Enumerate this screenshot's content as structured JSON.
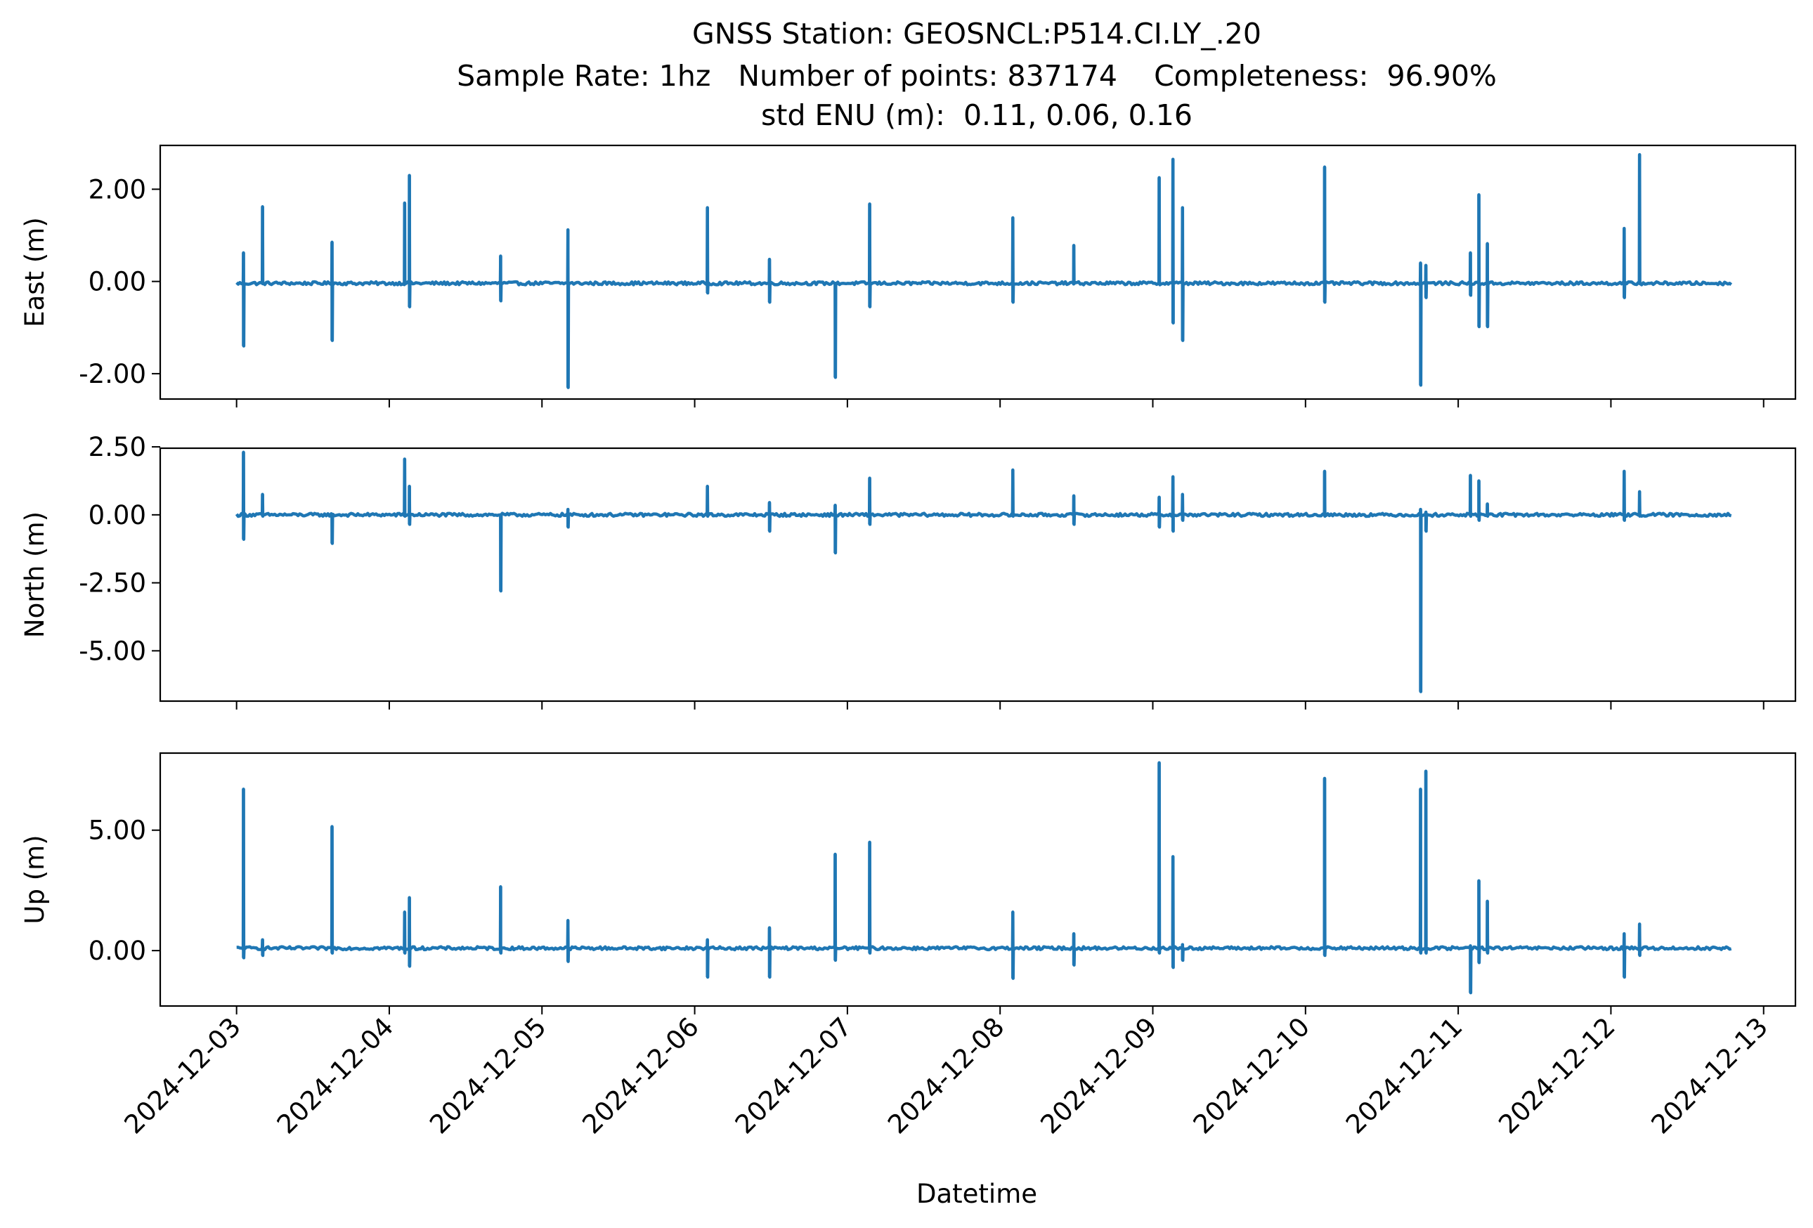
{
  "figure": {
    "title_lines": [
      "GNSS Station: GEOSNCL:P514.CI.LY_.20",
      "Sample Rate: 1hz   Number of points: 837174    Completeness:  96.90%",
      "std ENU (m):  0.11, 0.06, 0.16"
    ],
    "xlabel": "Datetime",
    "line_color": "#1f77b4"
  },
  "chart_data": [
    {
      "type": "line",
      "ylabel": "East (m)",
      "ylim": [
        -2.55,
        2.95
      ],
      "yticks": [
        -2.0,
        0.0,
        2.0
      ],
      "ytick_labels": [
        "-2.00",
        "0.00",
        "2.00"
      ],
      "xlim": [
        "2024-12-02 12:00",
        "2024-12-13 05:00"
      ],
      "x_tick_labels": [
        "2024-12-03",
        "2024-12-04",
        "2024-12-05",
        "2024-12-06",
        "2024-12-07",
        "2024-12-08",
        "2024-12-09",
        "2024-12-10",
        "2024-12-11",
        "2024-12-12",
        "2024-12-13"
      ],
      "series": [
        {
          "start": "2024-12-03 00:00",
          "end": "2024-12-12 18:55",
          "baseline": -0.04,
          "spikes": [
            {
              "t": "2024-12-03 01:05",
              "min": -1.4,
              "max": 0.62
            },
            {
              "t": "2024-12-03 04:05",
              "min": -0.05,
              "max": 1.62
            },
            {
              "t": "2024-12-03 15:00",
              "min": -1.28,
              "max": 0.85
            },
            {
              "t": "2024-12-04 02:25",
              "min": -0.05,
              "max": 1.7
            },
            {
              "t": "2024-12-04 03:10",
              "min": -0.55,
              "max": 2.3
            },
            {
              "t": "2024-12-04 17:30",
              "min": -0.42,
              "max": 0.55
            },
            {
              "t": "2024-12-05 04:05",
              "min": -2.3,
              "max": 1.12
            },
            {
              "t": "2024-12-06 02:00",
              "min": -0.25,
              "max": 1.6
            },
            {
              "t": "2024-12-06 11:45",
              "min": -0.45,
              "max": 0.48
            },
            {
              "t": "2024-12-06 22:05",
              "min": -2.08,
              "max": -0.05
            },
            {
              "t": "2024-12-07 03:30",
              "min": -0.55,
              "max": 1.68
            },
            {
              "t": "2024-12-08 02:00",
              "min": -0.45,
              "max": 1.38
            },
            {
              "t": "2024-12-08 11:35",
              "min": -0.05,
              "max": 0.78
            },
            {
              "t": "2024-12-09 01:00",
              "min": -0.05,
              "max": 2.25
            },
            {
              "t": "2024-12-09 03:10",
              "min": -0.9,
              "max": 2.65
            },
            {
              "t": "2024-12-09 04:40",
              "min": -1.28,
              "max": 1.6
            },
            {
              "t": "2024-12-10 03:00",
              "min": -0.45,
              "max": 2.48
            },
            {
              "t": "2024-12-10 18:05",
              "min": -2.25,
              "max": 0.4
            },
            {
              "t": "2024-12-10 18:55",
              "min": -0.35,
              "max": 0.35
            },
            {
              "t": "2024-12-11 01:55",
              "min": -0.3,
              "max": 0.62
            },
            {
              "t": "2024-12-11 03:15",
              "min": -0.98,
              "max": 1.88
            },
            {
              "t": "2024-12-11 04:35",
              "min": -0.98,
              "max": 0.82
            },
            {
              "t": "2024-12-12 02:05",
              "min": -0.35,
              "max": 1.15
            },
            {
              "t": "2024-12-12 04:30",
              "min": -0.05,
              "max": 2.75
            }
          ]
        }
      ]
    },
    {
      "type": "line",
      "ylabel": "North (m)",
      "ylim": [
        -6.85,
        2.45
      ],
      "yticks": [
        -5.0,
        -2.5,
        0.0,
        2.5
      ],
      "ytick_labels": [
        "-5.00",
        "-2.50",
        "0.00",
        "2.50"
      ],
      "xlim": [
        "2024-12-02 12:00",
        "2024-12-13 05:00"
      ],
      "x_tick_labels": [
        "2024-12-03",
        "2024-12-04",
        "2024-12-05",
        "2024-12-06",
        "2024-12-07",
        "2024-12-08",
        "2024-12-09",
        "2024-12-10",
        "2024-12-11",
        "2024-12-12",
        "2024-12-13"
      ],
      "series": [
        {
          "start": "2024-12-03 00:00",
          "end": "2024-12-12 18:55",
          "baseline": 0.0,
          "spikes": [
            {
              "t": "2024-12-03 01:05",
              "min": -0.9,
              "max": 2.3
            },
            {
              "t": "2024-12-03 04:05",
              "min": -0.05,
              "max": 0.75
            },
            {
              "t": "2024-12-03 15:00",
              "min": -1.05,
              "max": -0.05
            },
            {
              "t": "2024-12-04 02:25",
              "min": -0.05,
              "max": 2.05
            },
            {
              "t": "2024-12-04 03:10",
              "min": -0.35,
              "max": 1.05
            },
            {
              "t": "2024-12-04 17:30",
              "min": -2.8,
              "max": -0.05
            },
            {
              "t": "2024-12-05 04:05",
              "min": -0.45,
              "max": 0.2
            },
            {
              "t": "2024-12-06 02:00",
              "min": -0.05,
              "max": 1.05
            },
            {
              "t": "2024-12-06 11:45",
              "min": -0.6,
              "max": 0.45
            },
            {
              "t": "2024-12-06 22:05",
              "min": -1.4,
              "max": 0.35
            },
            {
              "t": "2024-12-07 03:30",
              "min": -0.35,
              "max": 1.35
            },
            {
              "t": "2024-12-08 02:00",
              "min": -0.05,
              "max": 1.65
            },
            {
              "t": "2024-12-08 11:35",
              "min": -0.35,
              "max": 0.7
            },
            {
              "t": "2024-12-09 01:00",
              "min": -0.45,
              "max": 0.65
            },
            {
              "t": "2024-12-09 03:10",
              "min": -0.6,
              "max": 1.4
            },
            {
              "t": "2024-12-09 04:40",
              "min": -0.2,
              "max": 0.75
            },
            {
              "t": "2024-12-10 03:00",
              "min": -0.05,
              "max": 1.6
            },
            {
              "t": "2024-12-10 18:05",
              "min": -6.5,
              "max": 0.2
            },
            {
              "t": "2024-12-10 18:55",
              "min": -0.6,
              "max": 0.1
            },
            {
              "t": "2024-12-11 01:55",
              "min": -0.05,
              "max": 1.45
            },
            {
              "t": "2024-12-11 03:15",
              "min": -0.2,
              "max": 1.25
            },
            {
              "t": "2024-12-11 04:35",
              "min": -0.05,
              "max": 0.4
            },
            {
              "t": "2024-12-12 02:05",
              "min": -0.2,
              "max": 1.6
            },
            {
              "t": "2024-12-12 04:30",
              "min": -0.05,
              "max": 0.85
            }
          ]
        }
      ]
    },
    {
      "type": "line",
      "ylabel": "Up (m)",
      "ylim": [
        -2.3,
        8.2
      ],
      "yticks": [
        0.0,
        5.0
      ],
      "ytick_labels": [
        "0.00",
        "5.00"
      ],
      "xlim": [
        "2024-12-02 12:00",
        "2024-12-13 05:00"
      ],
      "x_tick_labels": [
        "2024-12-03",
        "2024-12-04",
        "2024-12-05",
        "2024-12-06",
        "2024-12-07",
        "2024-12-08",
        "2024-12-09",
        "2024-12-10",
        "2024-12-11",
        "2024-12-12",
        "2024-12-13"
      ],
      "series": [
        {
          "start": "2024-12-03 00:00",
          "end": "2024-12-12 18:55",
          "baseline": 0.1,
          "spikes": [
            {
              "t": "2024-12-03 01:05",
              "min": -0.3,
              "max": 6.7
            },
            {
              "t": "2024-12-03 04:05",
              "min": -0.2,
              "max": 0.45
            },
            {
              "t": "2024-12-03 15:00",
              "min": -0.1,
              "max": 5.15
            },
            {
              "t": "2024-12-04 02:25",
              "min": -0.1,
              "max": 1.6
            },
            {
              "t": "2024-12-04 03:10",
              "min": -0.65,
              "max": 2.2
            },
            {
              "t": "2024-12-04 17:30",
              "min": -0.1,
              "max": 2.65
            },
            {
              "t": "2024-12-05 04:05",
              "min": -0.45,
              "max": 1.25
            },
            {
              "t": "2024-12-06 02:00",
              "min": -1.1,
              "max": 0.45
            },
            {
              "t": "2024-12-06 11:45",
              "min": -1.1,
              "max": 0.95
            },
            {
              "t": "2024-12-06 22:05",
              "min": -0.4,
              "max": 4.0
            },
            {
              "t": "2024-12-07 03:30",
              "min": -0.1,
              "max": 4.5
            },
            {
              "t": "2024-12-08 02:00",
              "min": -1.15,
              "max": 1.6
            },
            {
              "t": "2024-12-08 11:35",
              "min": -0.6,
              "max": 0.7
            },
            {
              "t": "2024-12-09 01:00",
              "min": -0.1,
              "max": 7.8
            },
            {
              "t": "2024-12-09 03:10",
              "min": -0.7,
              "max": 3.9
            },
            {
              "t": "2024-12-09 04:40",
              "min": -0.4,
              "max": 0.25
            },
            {
              "t": "2024-12-10 03:00",
              "min": -0.2,
              "max": 7.15
            },
            {
              "t": "2024-12-10 18:05",
              "min": -0.1,
              "max": 6.7
            },
            {
              "t": "2024-12-10 18:55",
              "min": -0.1,
              "max": 7.45
            },
            {
              "t": "2024-12-11 01:55",
              "min": -1.75,
              "max": 0.2
            },
            {
              "t": "2024-12-11 03:15",
              "min": -0.5,
              "max": 2.9
            },
            {
              "t": "2024-12-11 04:35",
              "min": -0.1,
              "max": 2.05
            },
            {
              "t": "2024-12-12 02:05",
              "min": -1.1,
              "max": 0.7
            },
            {
              "t": "2024-12-12 04:30",
              "min": -0.2,
              "max": 1.1
            }
          ]
        }
      ]
    }
  ]
}
